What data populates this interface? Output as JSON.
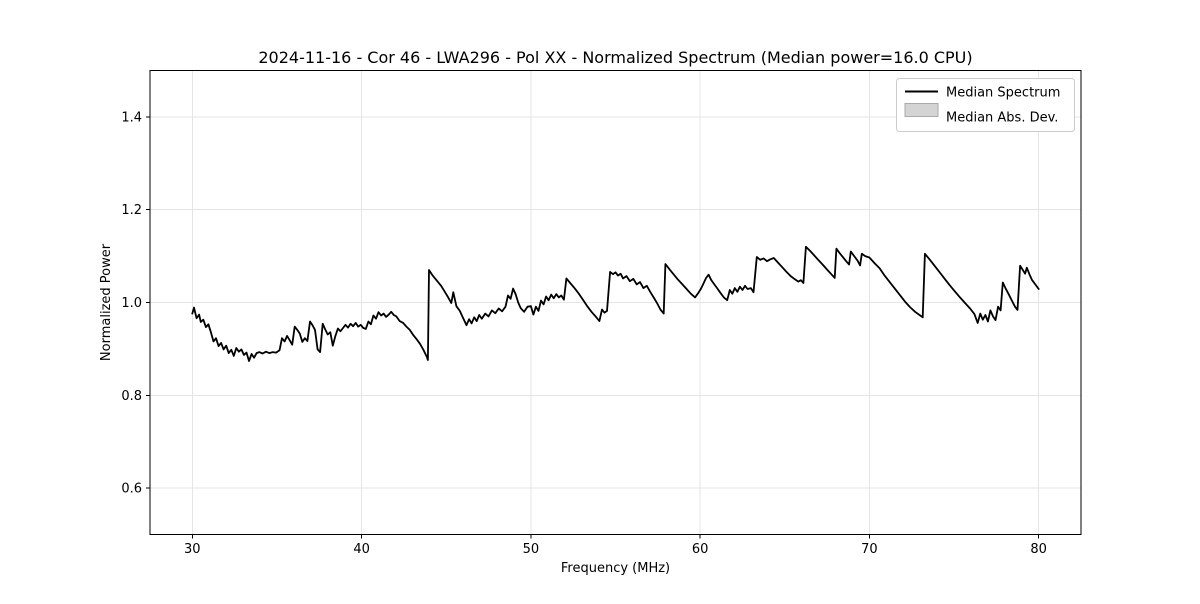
{
  "figure_title": "2024-11-16 - Cor 46 - LWA296 - Pol XX - Normalized Spectrum (Median power=16.0 CPU)",
  "colors": {
    "line": "#000000",
    "grid": "#e5e5e5",
    "frame": "#000000",
    "legend_border": "#cccccc",
    "legend_patch_fill": "#d4d4d4",
    "legend_patch_edge": "#aaaaaa",
    "background": "#ffffff"
  },
  "chart_data": {
    "type": "line",
    "title": "2024-11-16 - Cor 46 - LWA296 - Pol XX - Normalized Spectrum (Median power=16.0 CPU)",
    "xlabel": "Frequency (MHz)",
    "ylabel": "Normalized Power",
    "xlim": [
      27.5,
      82.5
    ],
    "ylim": [
      0.5,
      1.5
    ],
    "xticks": [
      30,
      40,
      50,
      60,
      70,
      80
    ],
    "yticks": [
      0.6,
      0.8,
      1.0,
      1.2,
      1.4
    ],
    "grid": true,
    "legend": {
      "position": "upper right",
      "entries": [
        {
          "label": "Median Spectrum",
          "type": "line",
          "color": "#000000"
        },
        {
          "label": "Median Abs. Dev.",
          "type": "patch",
          "fill": "#d4d4d4",
          "edge": "#aaaaaa"
        }
      ]
    },
    "series": [
      {
        "name": "Median Spectrum",
        "color": "#000000",
        "points": [
          [
            30.0,
            0.976
          ],
          [
            30.1,
            0.989
          ],
          [
            30.25,
            0.966
          ],
          [
            30.4,
            0.974
          ],
          [
            30.5,
            0.958
          ],
          [
            30.65,
            0.963
          ],
          [
            30.8,
            0.947
          ],
          [
            30.95,
            0.953
          ],
          [
            31.1,
            0.936
          ],
          [
            31.25,
            0.916
          ],
          [
            31.4,
            0.923
          ],
          [
            31.55,
            0.906
          ],
          [
            31.7,
            0.913
          ],
          [
            31.85,
            0.899
          ],
          [
            32.0,
            0.907
          ],
          [
            32.15,
            0.891
          ],
          [
            32.3,
            0.898
          ],
          [
            32.45,
            0.885
          ],
          [
            32.6,
            0.902
          ],
          [
            32.75,
            0.894
          ],
          [
            32.9,
            0.899
          ],
          [
            33.05,
            0.887
          ],
          [
            33.2,
            0.892
          ],
          [
            33.35,
            0.874
          ],
          [
            33.5,
            0.889
          ],
          [
            33.65,
            0.881
          ],
          [
            33.8,
            0.891
          ],
          [
            33.95,
            0.893
          ],
          [
            34.15,
            0.89
          ],
          [
            34.35,
            0.894
          ],
          [
            34.55,
            0.891
          ],
          [
            34.75,
            0.893
          ],
          [
            34.95,
            0.892
          ],
          [
            35.15,
            0.897
          ],
          [
            35.3,
            0.923
          ],
          [
            35.45,
            0.916
          ],
          [
            35.6,
            0.928
          ],
          [
            35.75,
            0.919
          ],
          [
            35.9,
            0.909
          ],
          [
            36.05,
            0.948
          ],
          [
            36.2,
            0.941
          ],
          [
            36.35,
            0.933
          ],
          [
            36.5,
            0.915
          ],
          [
            36.65,
            0.923
          ],
          [
            36.8,
            0.917
          ],
          [
            36.95,
            0.959
          ],
          [
            37.1,
            0.951
          ],
          [
            37.25,
            0.941
          ],
          [
            37.4,
            0.899
          ],
          [
            37.55,
            0.893
          ],
          [
            37.7,
            0.954
          ],
          [
            37.85,
            0.942
          ],
          [
            38.0,
            0.931
          ],
          [
            38.15,
            0.936
          ],
          [
            38.3,
            0.907
          ],
          [
            38.45,
            0.928
          ],
          [
            38.6,
            0.944
          ],
          [
            38.75,
            0.938
          ],
          [
            38.9,
            0.945
          ],
          [
            39.05,
            0.952
          ],
          [
            39.2,
            0.946
          ],
          [
            39.35,
            0.954
          ],
          [
            39.5,
            0.949
          ],
          [
            39.65,
            0.956
          ],
          [
            39.8,
            0.948
          ],
          [
            39.95,
            0.952
          ],
          [
            40.1,
            0.945
          ],
          [
            40.25,
            0.943
          ],
          [
            40.4,
            0.959
          ],
          [
            40.55,
            0.953
          ],
          [
            40.7,
            0.972
          ],
          [
            40.85,
            0.965
          ],
          [
            41.0,
            0.979
          ],
          [
            41.15,
            0.972
          ],
          [
            41.3,
            0.976
          ],
          [
            41.45,
            0.969
          ],
          [
            41.6,
            0.974
          ],
          [
            41.75,
            0.98
          ],
          [
            41.9,
            0.973
          ],
          [
            42.05,
            0.97
          ],
          [
            42.25,
            0.96
          ],
          [
            42.45,
            0.956
          ],
          [
            42.65,
            0.948
          ],
          [
            42.85,
            0.941
          ],
          [
            43.05,
            0.93
          ],
          [
            43.25,
            0.921
          ],
          [
            43.45,
            0.911
          ],
          [
            43.65,
            0.898
          ],
          [
            43.85,
            0.883
          ],
          [
            43.92,
            0.876
          ],
          [
            43.98,
            1.07
          ],
          [
            44.2,
            1.058
          ],
          [
            44.45,
            1.047
          ],
          [
            44.7,
            1.036
          ],
          [
            44.95,
            1.021
          ],
          [
            45.1,
            1.012
          ],
          [
            45.3,
            0.999
          ],
          [
            45.42,
            1.022
          ],
          [
            45.6,
            0.992
          ],
          [
            45.8,
            0.982
          ],
          [
            46.0,
            0.966
          ],
          [
            46.2,
            0.951
          ],
          [
            46.35,
            0.964
          ],
          [
            46.5,
            0.955
          ],
          [
            46.65,
            0.968
          ],
          [
            46.8,
            0.96
          ],
          [
            46.95,
            0.973
          ],
          [
            47.1,
            0.965
          ],
          [
            47.3,
            0.976
          ],
          [
            47.5,
            0.97
          ],
          [
            47.7,
            0.983
          ],
          [
            47.9,
            0.977
          ],
          [
            48.1,
            0.987
          ],
          [
            48.3,
            0.981
          ],
          [
            48.5,
            0.991
          ],
          [
            48.65,
            1.015
          ],
          [
            48.8,
            1.008
          ],
          [
            48.95,
            1.03
          ],
          [
            49.1,
            1.018
          ],
          [
            49.25,
            1.0
          ],
          [
            49.4,
            0.988
          ],
          [
            49.6,
            0.98
          ],
          [
            49.8,
            0.991
          ],
          [
            50.0,
            0.992
          ],
          [
            50.15,
            0.974
          ],
          [
            50.3,
            0.991
          ],
          [
            50.45,
            0.982
          ],
          [
            50.6,
            1.004
          ],
          [
            50.75,
            0.996
          ],
          [
            50.9,
            1.013
          ],
          [
            51.05,
            1.005
          ],
          [
            51.2,
            1.017
          ],
          [
            51.35,
            1.009
          ],
          [
            51.5,
            1.018
          ],
          [
            51.65,
            1.011
          ],
          [
            51.8,
            1.015
          ],
          [
            51.95,
            1.006
          ],
          [
            52.1,
            1.052
          ],
          [
            52.35,
            1.041
          ],
          [
            52.6,
            1.03
          ],
          [
            52.85,
            1.018
          ],
          [
            53.1,
            1.005
          ],
          [
            53.35,
            0.991
          ],
          [
            53.6,
            0.979
          ],
          [
            53.85,
            0.969
          ],
          [
            54.05,
            0.96
          ],
          [
            54.2,
            0.985
          ],
          [
            54.35,
            0.978
          ],
          [
            54.5,
            0.982
          ],
          [
            54.68,
            1.066
          ],
          [
            54.85,
            1.061
          ],
          [
            55.0,
            1.065
          ],
          [
            55.15,
            1.058
          ],
          [
            55.3,
            1.062
          ],
          [
            55.45,
            1.052
          ],
          [
            55.65,
            1.057
          ],
          [
            55.85,
            1.046
          ],
          [
            56.05,
            1.051
          ],
          [
            56.25,
            1.039
          ],
          [
            56.45,
            1.044
          ],
          [
            56.65,
            1.031
          ],
          [
            56.85,
            1.036
          ],
          [
            57.05,
            1.023
          ],
          [
            57.25,
            1.011
          ],
          [
            57.45,
            0.999
          ],
          [
            57.65,
            0.985
          ],
          [
            57.85,
            0.976
          ],
          [
            57.95,
            1.083
          ],
          [
            58.2,
            1.071
          ],
          [
            58.45,
            1.06
          ],
          [
            58.7,
            1.049
          ],
          [
            58.95,
            1.039
          ],
          [
            59.2,
            1.029
          ],
          [
            59.45,
            1.019
          ],
          [
            59.7,
            1.011
          ],
          [
            59.9,
            1.021
          ],
          [
            60.05,
            1.03
          ],
          [
            60.2,
            1.041
          ],
          [
            60.35,
            1.053
          ],
          [
            60.5,
            1.06
          ],
          [
            60.65,
            1.049
          ],
          [
            60.8,
            1.041
          ],
          [
            61.0,
            1.031
          ],
          [
            61.2,
            1.021
          ],
          [
            61.4,
            1.011
          ],
          [
            61.6,
            1.005
          ],
          [
            61.75,
            1.027
          ],
          [
            61.9,
            1.019
          ],
          [
            62.05,
            1.031
          ],
          [
            62.2,
            1.023
          ],
          [
            62.35,
            1.034
          ],
          [
            62.5,
            1.027
          ],
          [
            62.65,
            1.036
          ],
          [
            62.8,
            1.029
          ],
          [
            63.0,
            1.031
          ],
          [
            63.15,
            1.022
          ],
          [
            63.35,
            1.098
          ],
          [
            63.55,
            1.092
          ],
          [
            63.75,
            1.095
          ],
          [
            63.95,
            1.089
          ],
          [
            64.15,
            1.093
          ],
          [
            64.35,
            1.096
          ],
          [
            64.6,
            1.086
          ],
          [
            64.85,
            1.076
          ],
          [
            65.1,
            1.066
          ],
          [
            65.35,
            1.057
          ],
          [
            65.6,
            1.05
          ],
          [
            65.8,
            1.045
          ],
          [
            65.95,
            1.048
          ],
          [
            66.1,
            1.042
          ],
          [
            66.25,
            1.12
          ],
          [
            66.5,
            1.111
          ],
          [
            66.75,
            1.101
          ],
          [
            67.0,
            1.091
          ],
          [
            67.25,
            1.081
          ],
          [
            67.5,
            1.071
          ],
          [
            67.75,
            1.061
          ],
          [
            67.95,
            1.053
          ],
          [
            68.05,
            1.116
          ],
          [
            68.25,
            1.106
          ],
          [
            68.45,
            1.097
          ],
          [
            68.65,
            1.088
          ],
          [
            68.8,
            1.082
          ],
          [
            68.9,
            1.11
          ],
          [
            69.1,
            1.1
          ],
          [
            69.3,
            1.09
          ],
          [
            69.45,
            1.08
          ],
          [
            69.55,
            1.105
          ],
          [
            69.75,
            1.1
          ],
          [
            70.0,
            1.097
          ],
          [
            70.3,
            1.085
          ],
          [
            70.6,
            1.074
          ],
          [
            70.9,
            1.058
          ],
          [
            71.2,
            1.044
          ],
          [
            71.5,
            1.03
          ],
          [
            71.8,
            1.016
          ],
          [
            72.1,
            1.002
          ],
          [
            72.4,
            0.99
          ],
          [
            72.7,
            0.98
          ],
          [
            73.0,
            0.972
          ],
          [
            73.15,
            0.968
          ],
          [
            73.28,
            1.105
          ],
          [
            73.55,
            1.093
          ],
          [
            73.85,
            1.079
          ],
          [
            74.15,
            1.065
          ],
          [
            74.45,
            1.051
          ],
          [
            74.75,
            1.037
          ],
          [
            75.05,
            1.024
          ],
          [
            75.35,
            1.011
          ],
          [
            75.65,
            0.999
          ],
          [
            75.95,
            0.987
          ],
          [
            76.2,
            0.975
          ],
          [
            76.4,
            0.956
          ],
          [
            76.55,
            0.976
          ],
          [
            76.7,
            0.963
          ],
          [
            76.85,
            0.973
          ],
          [
            77.0,
            0.959
          ],
          [
            77.15,
            0.983
          ],
          [
            77.3,
            0.97
          ],
          [
            77.45,
            0.962
          ],
          [
            77.6,
            0.991
          ],
          [
            77.75,
            0.983
          ],
          [
            77.88,
            1.043
          ],
          [
            78.05,
            1.03
          ],
          [
            78.25,
            1.016
          ],
          [
            78.45,
            1.002
          ],
          [
            78.6,
            0.991
          ],
          [
            78.75,
            0.984
          ],
          [
            78.9,
            1.079
          ],
          [
            79.05,
            1.071
          ],
          [
            79.2,
            1.062
          ],
          [
            79.3,
            1.075
          ],
          [
            79.45,
            1.061
          ],
          [
            79.6,
            1.049
          ],
          [
            79.8,
            1.039
          ],
          [
            80.0,
            1.029
          ]
        ]
      }
    ]
  }
}
